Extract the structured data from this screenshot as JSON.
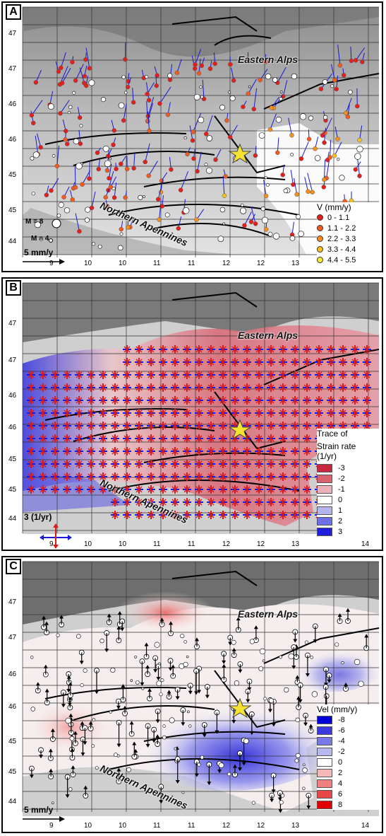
{
  "lat_ticks": [
    "47",
    "47",
    "46",
    "46",
    "45",
    "45",
    "44"
  ],
  "lon_ticks": [
    "9",
    "10",
    "10",
    "11",
    "11",
    "12",
    "12",
    "13",
    "14"
  ],
  "region_labels": {
    "alps": "Eastern Alps",
    "apennines": "Northern Apennines"
  },
  "panels": [
    {
      "label": "A",
      "legend_title": "V (mm/y)",
      "legend_items": [
        {
          "label": "0 - 1.1",
          "color": "#e3201b"
        },
        {
          "label": "1.1 - 2.2",
          "color": "#f25a1e"
        },
        {
          "label": "2.2 - 3.3",
          "color": "#f5901f"
        },
        {
          "label": "3.3 - 4.4",
          "color": "#f7c21a"
        },
        {
          "label": "4.4 - 5.5",
          "color": "#f7ea3a"
        }
      ],
      "magnitude_labels": [
        "M = 8",
        "M = 4"
      ],
      "scale_label": "5 mm/y"
    },
    {
      "label": "B",
      "legend_title_lines": [
        "Trace of",
        "Strain rate",
        "(1/yr)"
      ],
      "legend_items": [
        {
          "label": "-3",
          "color": "#c8283d"
        },
        {
          "label": "-2",
          "color": "#d9626f"
        },
        {
          "label": "-1",
          "color": "#ebb1b8"
        },
        {
          "label": "0",
          "color": "#ffffff"
        },
        {
          "label": "1",
          "color": "#b4b4ee"
        },
        {
          "label": "2",
          "color": "#6e6ee6"
        },
        {
          "label": "3",
          "color": "#1e1edc"
        }
      ],
      "scale_label": "3 (1/yr)"
    },
    {
      "label": "C",
      "legend_title": "Vel (mm/y)",
      "legend_items": [
        {
          "label": "-8",
          "color": "#0000d8"
        },
        {
          "label": "-6",
          "color": "#3a3ae0"
        },
        {
          "label": "-4",
          "color": "#7878e8"
        },
        {
          "label": "-2",
          "color": "#b8b8f0"
        },
        {
          "label": "0",
          "color": "#ffffff"
        },
        {
          "label": "2",
          "color": "#f4b8b8"
        },
        {
          "label": "4",
          "color": "#ee8080"
        },
        {
          "label": "6",
          "color": "#e84848"
        },
        {
          "label": "8",
          "color": "#e00000"
        }
      ],
      "scale_label": "5 mm/y"
    }
  ],
  "colors": {
    "relief_light": "#cfcfcf",
    "relief_dark": "#6a6a6a",
    "grid": "#333333",
    "star": "#f5e232"
  }
}
